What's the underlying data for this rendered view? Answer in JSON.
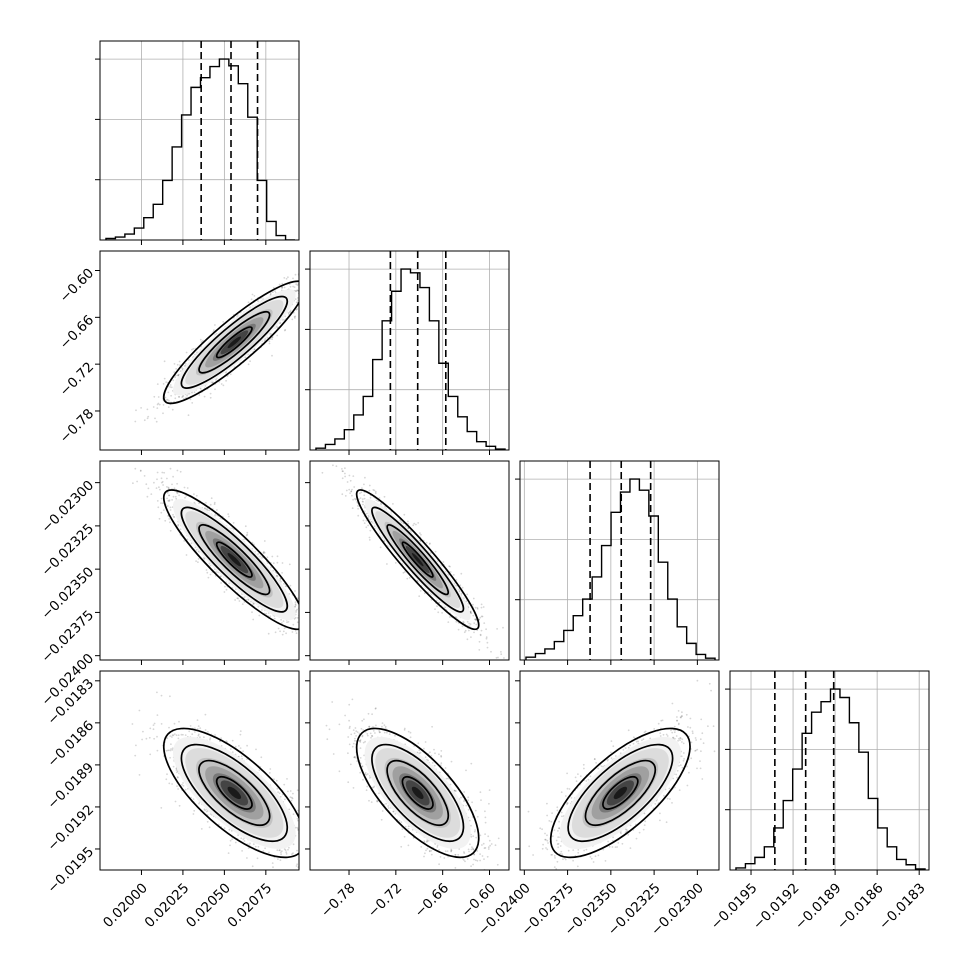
{
  "chart_data": {
    "type": "corner",
    "parameters": [
      {
        "range": [
          0.01975,
          0.02095
        ],
        "ticks": [
          0.02,
          0.02025,
          0.0205,
          0.02075
        ],
        "tick_labels": [
          "0.02000",
          "0.02025",
          "0.02050",
          "0.02075"
        ],
        "quantiles": [
          0.02036,
          0.02054,
          0.0207
        ],
        "hist_counts": [
          2,
          4,
          8,
          16,
          30,
          48,
          80,
          125,
          168,
          205,
          218,
          233,
          243,
          234,
          210,
          165,
          80,
          25,
          6,
          0
        ],
        "grid": true
      },
      {
        "range": [
          -0.83,
          -0.575
        ],
        "ticks": [
          -0.78,
          -0.72,
          -0.66,
          -0.6
        ],
        "tick_labels": [
          "−0.78",
          "−0.72",
          "−0.66",
          "−0.60"
        ],
        "quantiles": [
          -0.727,
          -0.692,
          -0.656
        ],
        "hist_counts": [
          2,
          6,
          12,
          22,
          38,
          58,
          98,
          140,
          172,
          196,
          192,
          176,
          140,
          94,
          58,
          36,
          20,
          9,
          4,
          1
        ],
        "grid": true
      },
      {
        "range": [
          -0.024025,
          -0.022875
        ],
        "ticks": [
          -0.024,
          -0.02375,
          -0.0235,
          -0.02325,
          -0.023
        ],
        "tick_labels": [
          "−0.02400",
          "−0.02375",
          "−0.02350",
          "−0.02325",
          "−0.02300"
        ],
        "quantiles": [
          -0.02362,
          -0.02344,
          -0.02327
        ],
        "hist_counts": [
          3,
          7,
          12,
          20,
          32,
          48,
          66,
          90,
          124,
          160,
          182,
          196,
          184,
          156,
          106,
          66,
          36,
          18,
          6,
          2
        ],
        "grid": true
      },
      {
        "range": [
          -0.01965,
          -0.01823
        ],
        "ticks": [
          -0.0195,
          -0.0192,
          -0.0189,
          -0.0186,
          -0.0183
        ],
        "tick_labels": [
          "−0.0195",
          "−0.0192",
          "−0.0189",
          "−0.0186",
          "−0.0183"
        ],
        "quantiles": [
          -0.01933,
          -0.01911,
          -0.01891
        ],
        "hist_counts": [
          2,
          6,
          12,
          22,
          40,
          66,
          96,
          130,
          150,
          160,
          172,
          164,
          140,
          112,
          68,
          40,
          22,
          10,
          5,
          1
        ],
        "grid": true
      }
    ],
    "pairs": [
      {
        "row": 1,
        "col": 0,
        "mean": [
          0.02056,
          -0.692
        ],
        "std": [
          0.000185,
          0.034
        ],
        "corr": 0.9
      },
      {
        "row": 2,
        "col": 0,
        "mean": [
          0.02056,
          -0.023445
        ],
        "std": [
          0.000185,
          0.000175
        ],
        "corr": -0.89
      },
      {
        "row": 2,
        "col": 1,
        "mean": [
          -0.692,
          -0.023445
        ],
        "std": [
          0.034,
          0.000175
        ],
        "corr": -0.94
      },
      {
        "row": 3,
        "col": 0,
        "mean": [
          0.02056,
          -0.0191
        ],
        "std": [
          0.000185,
          0.0002
        ],
        "corr": -0.72
      },
      {
        "row": 3,
        "col": 1,
        "mean": [
          -0.692,
          -0.0191
        ],
        "std": [
          0.034,
          0.0002
        ],
        "corr": -0.7
      },
      {
        "row": 3,
        "col": 2,
        "mean": [
          -0.023445,
          -0.0191
        ],
        "std": [
          0.000175,
          0.0002
        ],
        "corr": 0.72
      }
    ],
    "contour_levels_sigma": [
      0.5,
      1.0,
      1.5,
      2.0
    ],
    "scatter_color": "#000000",
    "line_color": "#000000",
    "grid_color": "#b0b0b0"
  }
}
